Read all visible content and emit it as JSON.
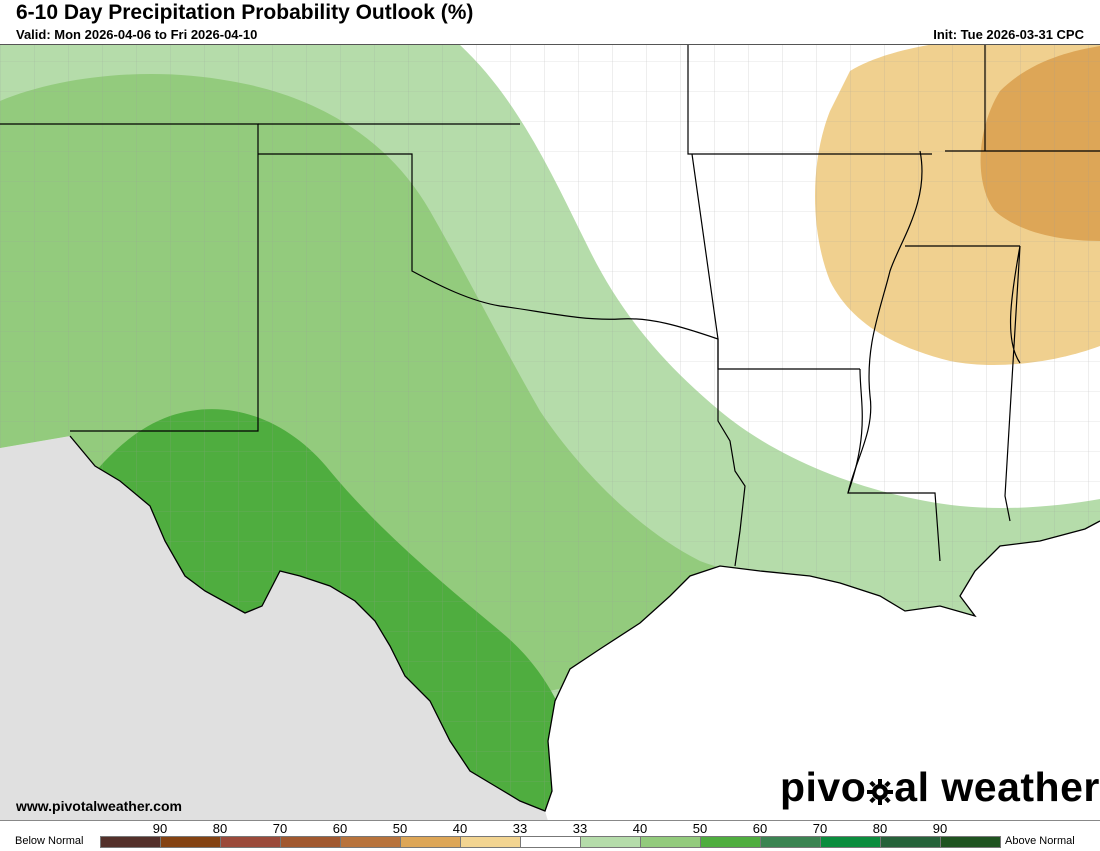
{
  "header": {
    "title": "6-10 Day Precipitation Probability Outlook (%)",
    "valid": "Valid: Mon 2026-04-06 to Fri 2026-04-10",
    "init": "Init: Tue 2026-03-31 CPC"
  },
  "footer": {
    "website": "www.pivotalweather.com",
    "brand_left": "pivo",
    "brand_right": "al weather"
  },
  "legend": {
    "below_label": "Below Normal",
    "above_label": "Above Normal",
    "ticks": [
      "90",
      "80",
      "70",
      "60",
      "50",
      "40",
      "33",
      "33",
      "40",
      "50",
      "60",
      "70",
      "80",
      "90"
    ],
    "colors": [
      "#53302a",
      "#844212",
      "#9b4a3a",
      "#a1582f",
      "#b8733c",
      "#dda657",
      "#f2d491",
      "#ffffff",
      "#b5dcaa",
      "#93cb7d",
      "#4fad3f",
      "#3b8452",
      "#0b8d3e",
      "#26623a",
      "#1f5320"
    ]
  },
  "map": {
    "colors": {
      "land": "#ffffff",
      "gulf": "#ffffff",
      "mexico": "#e0e0e0",
      "green33": "#b5dcaa",
      "green40": "#93cb7d",
      "green50": "#4fad3f",
      "brown33": "#f0d08f",
      "brown40": "#dda657"
    }
  }
}
